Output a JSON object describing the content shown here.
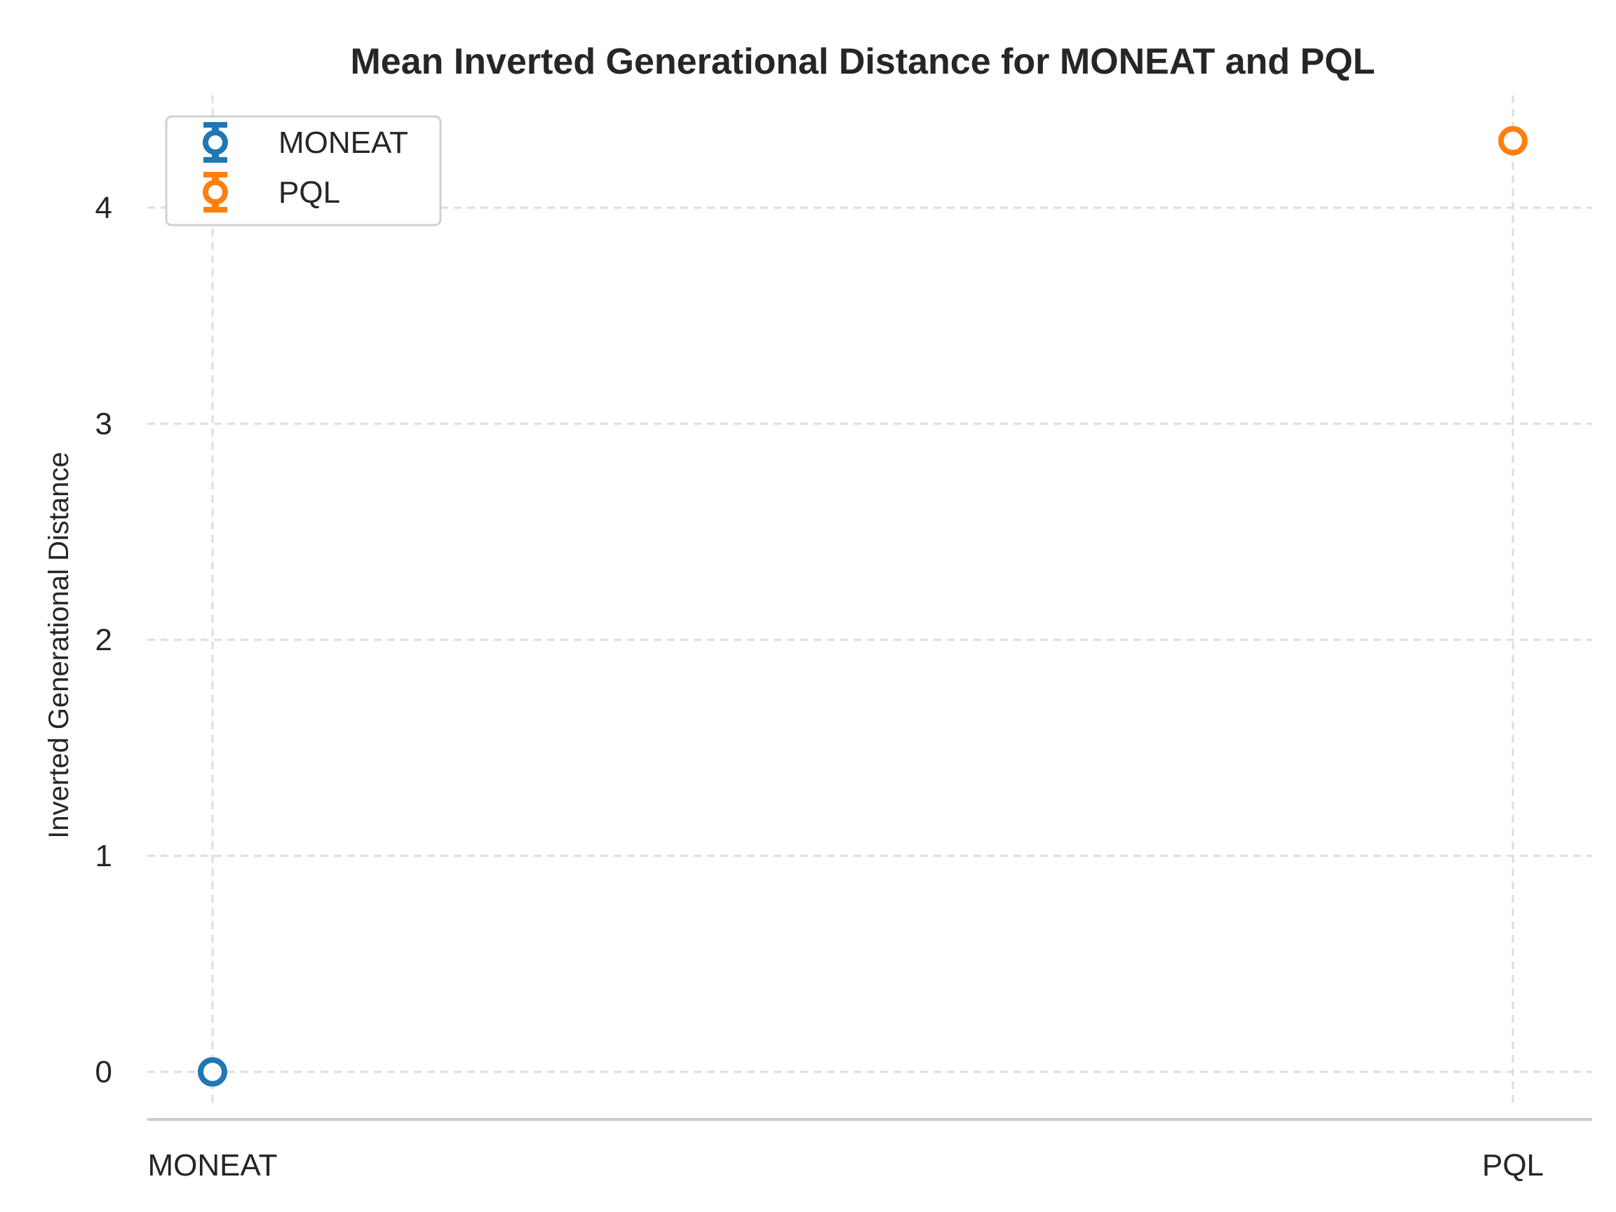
{
  "chart_data": {
    "type": "scatter",
    "title": "Mean Inverted Generational Distance for MONEAT and PQL",
    "xlabel": "",
    "ylabel": "Inverted Generational Distance",
    "categories": [
      "MONEAT",
      "PQL"
    ],
    "series": [
      {
        "name": "MONEAT",
        "x": "MONEAT",
        "value": 0.0,
        "error": 0.0,
        "color": "#1f77b4"
      },
      {
        "name": "PQL",
        "x": "PQL",
        "value": 4.31,
        "error": 0.0,
        "color": "#ff7f0e"
      }
    ],
    "ylim": [
      -0.22,
      4.52
    ],
    "yticks": [
      0,
      1,
      2,
      3,
      4
    ],
    "xticks": [
      "MONEAT",
      "PQL"
    ],
    "grid": true,
    "grid_style": "dashed",
    "legend_position": "upper-left",
    "marker": "hollow-circle-with-errorbar"
  }
}
